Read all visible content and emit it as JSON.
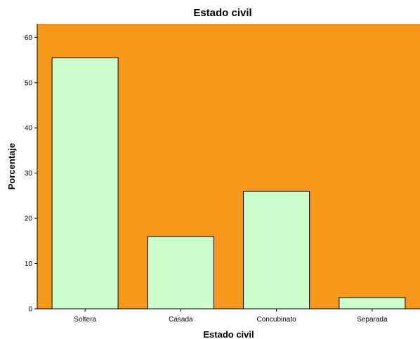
{
  "chart_data": {
    "type": "bar",
    "title": "Estado civil",
    "xlabel": "Estado civil",
    "ylabel": "Porcentaje",
    "categories": [
      "Soltera",
      "Casada",
      "Concubinato",
      "Separada"
    ],
    "values": [
      55.5,
      16.0,
      26.0,
      2.5
    ],
    "ylim": [
      0,
      63
    ],
    "yticks": [
      0,
      10,
      20,
      30,
      40,
      50,
      60
    ],
    "grid": false,
    "legend": "none"
  },
  "colors": {
    "plot_background": "#f7981d",
    "bar_fill": "#ccffcc",
    "bar_stroke": "#000000",
    "axis": "#000000"
  }
}
